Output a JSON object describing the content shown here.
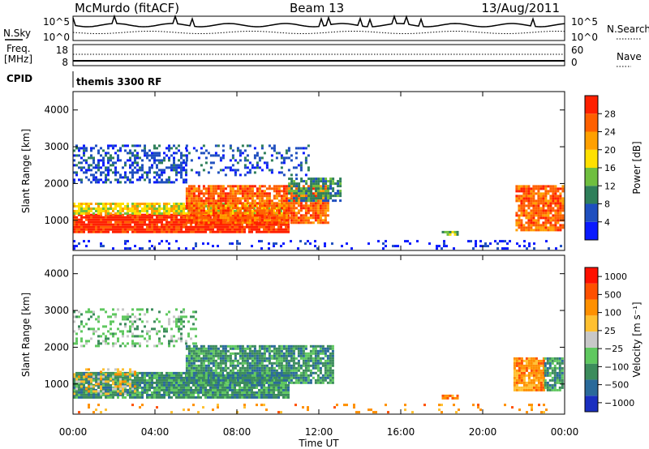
{
  "header": {
    "station": "McMurdo (fitACF)",
    "beam": "Beam 13",
    "date": "13/Aug/2011"
  },
  "status_panels": {
    "nsky_label": "N.Sky",
    "nsearch_label": "N.Search",
    "freq_label_1": "Freq.",
    "freq_label_2": "[MHz]",
    "nave_label": "Nave",
    "cpid_label": "CPID",
    "cpid_value": "themis 3300 RF",
    "noise_ticks": [
      "10^5",
      "10^0"
    ],
    "freq_ticks": [
      "18",
      "8"
    ],
    "nave_ticks": [
      "60",
      "0"
    ]
  },
  "axes": {
    "xlabel": "Time UT",
    "ylabel": "Slant Range [km]",
    "xticks": [
      "00:00",
      "04:00",
      "08:00",
      "12:00",
      "16:00",
      "20:00",
      "00:00"
    ],
    "yticks": [
      "1000",
      "2000",
      "3000",
      "4000"
    ]
  },
  "power_colorbar": {
    "label": "Power [dB]",
    "ticks": [
      "4",
      "8",
      "12",
      "16",
      "20",
      "24",
      "28"
    ],
    "colors": [
      "#0a1aff",
      "#1f4fbf",
      "#2f7f5a",
      "#6fbf3f",
      "#ffe000",
      "#ffa000",
      "#ff6000",
      "#ff2000"
    ]
  },
  "velocity_colorbar": {
    "label": "Velocity [m s⁻¹]",
    "ticks": [
      "1000",
      "500",
      "100",
      "25",
      "−25",
      "−100",
      "−500",
      "−1000"
    ],
    "colors": [
      "#1a2fc0",
      "#2a6a9a",
      "#3c8c5c",
      "#5fc85f",
      "#c8c8c8",
      "#ffc030",
      "#ff9000",
      "#ff5000",
      "#ff1000"
    ]
  },
  "chart_data": [
    {
      "type": "heatmap",
      "title": "",
      "xlabel": "Time UT",
      "ylabel": "Slant Range [km]",
      "xlim": [
        0,
        24
      ],
      "ylim": [
        180,
        4500
      ],
      "colorbar_label": "Power [dB]",
      "colorbar_range": [
        0,
        30
      ],
      "layers": [
        {
          "t0": 0.0,
          "t1": 10.5,
          "r0": 650,
          "r1": 1150,
          "level": 7,
          "density": 0.95
        },
        {
          "t0": 0.0,
          "t1": 10.5,
          "r0": 1150,
          "r1": 1450,
          "level": 4,
          "density": 0.85
        },
        {
          "t0": 5.5,
          "t1": 12.5,
          "r0": 900,
          "r1": 1900,
          "level": 6,
          "density": 0.85
        },
        {
          "t0": 10.5,
          "t1": 13.0,
          "r0": 1500,
          "r1": 2100,
          "level": 2,
          "density": 0.7
        },
        {
          "t0": 21.6,
          "t1": 24.0,
          "r0": 700,
          "r1": 1900,
          "level": 6,
          "density": 0.85
        },
        {
          "t0": 0.0,
          "t1": 5.5,
          "r0": 2000,
          "r1": 3000,
          "level": 1,
          "density": 0.45
        },
        {
          "t0": 5.5,
          "t1": 11.5,
          "r0": 2200,
          "r1": 3000,
          "level": 1,
          "density": 0.25
        },
        {
          "t0": 0.0,
          "t1": 24.0,
          "r0": 200,
          "r1": 400,
          "level": 0,
          "density": 0.15
        },
        {
          "t0": 18.0,
          "t1": 18.8,
          "r0": 580,
          "r1": 700,
          "level": 3,
          "density": 0.9
        }
      ]
    },
    {
      "type": "heatmap",
      "title": "",
      "xlabel": "Time UT",
      "ylabel": "Slant Range [km]",
      "xlim": [
        0,
        24
      ],
      "ylim": [
        180,
        4500
      ],
      "colorbar_label": "Velocity [m s⁻¹]",
      "colorbar_range": [
        -1000,
        1000
      ],
      "layers": [
        {
          "t0": 0.0,
          "t1": 10.5,
          "r0": 600,
          "r1": 1300,
          "level": 2,
          "density": 0.95
        },
        {
          "t0": 5.5,
          "t1": 12.7,
          "r0": 1000,
          "r1": 2000,
          "level": 2,
          "density": 0.85
        },
        {
          "t0": 0.0,
          "t1": 3.0,
          "r0": 700,
          "r1": 1400,
          "level": 5,
          "density": 0.35
        },
        {
          "t0": 21.5,
          "t1": 23.0,
          "r0": 800,
          "r1": 1700,
          "level": 6,
          "density": 0.9
        },
        {
          "t0": 23.0,
          "t1": 24.0,
          "r0": 800,
          "r1": 1700,
          "level": 2,
          "density": 0.8
        },
        {
          "t0": 0.0,
          "t1": 6.0,
          "r0": 2000,
          "r1": 3000,
          "level": 3,
          "density": 0.3
        },
        {
          "t0": 0.0,
          "t1": 24.0,
          "r0": 200,
          "r1": 400,
          "level": 6,
          "density": 0.1
        },
        {
          "t0": 18.0,
          "t1": 18.8,
          "r0": 580,
          "r1": 700,
          "level": 6,
          "density": 0.9
        }
      ]
    }
  ]
}
